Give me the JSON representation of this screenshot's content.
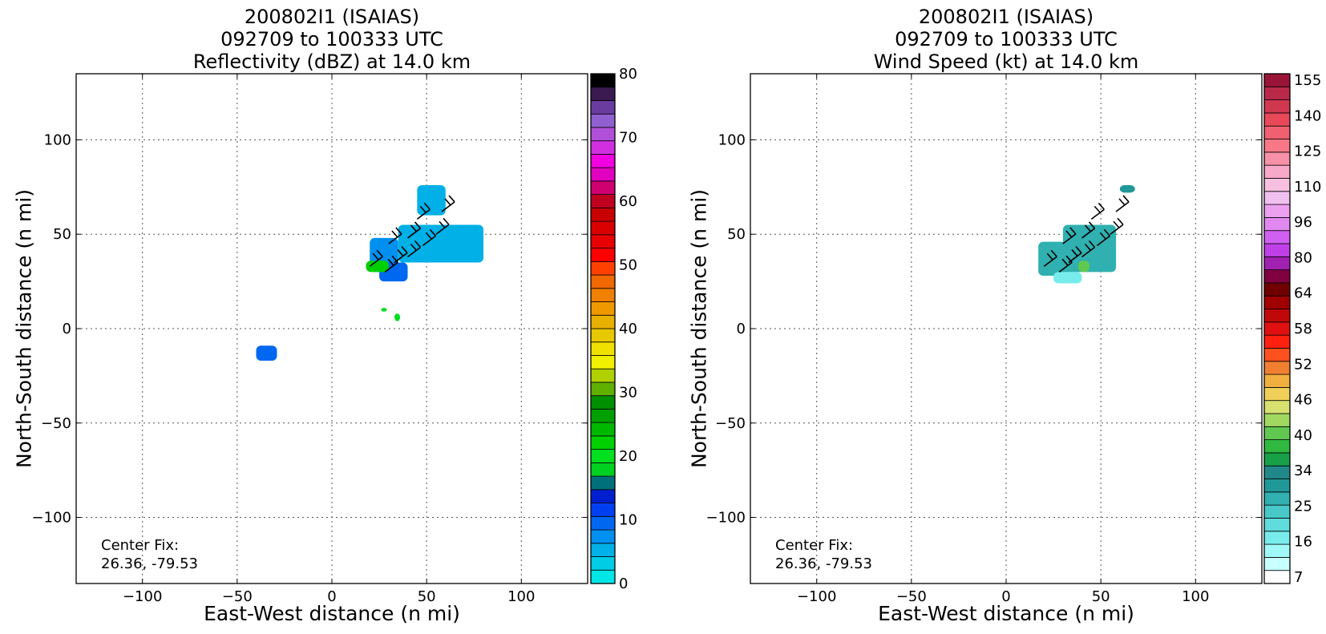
{
  "chart_data": [
    {
      "type": "heatmap",
      "title_lines": [
        "200802I1 (ISAIAS)",
        "092709 to 100333 UTC",
        "Reflectivity (dBZ) at 14.0 km"
      ],
      "xlabel": "East-West distance (n mi)",
      "ylabel": "North-South distance (n mi)",
      "xlim": [
        -135,
        135
      ],
      "ylim": [
        -135,
        135
      ],
      "xticks": [
        -100,
        -50,
        0,
        50,
        100
      ],
      "yticks": [
        -100,
        -50,
        0,
        50,
        100
      ],
      "xtick_labels": [
        "−100",
        "−50",
        "0",
        "50",
        "100"
      ],
      "ytick_labels": [
        "−100",
        "−50",
        "0",
        "50",
        "100"
      ],
      "grid": true,
      "center_fix_label": "Center Fix:",
      "center_fix_value": "26.36, -79.53",
      "colorbar": {
        "min": 0,
        "max": 80,
        "ticks": [
          "0",
          "10",
          "20",
          "30",
          "40",
          "50",
          "60",
          "70",
          "80"
        ],
        "colors": [
          "#00e6e6",
          "#00cce6",
          "#00b0e6",
          "#0090f0",
          "#0068f0",
          "#0040f0",
          "#0020d0",
          "#00707a",
          "#00d020",
          "#00e020",
          "#00d000",
          "#00b800",
          "#00a000",
          "#009000",
          "#60b000",
          "#b0d000",
          "#f0f000",
          "#f0e000",
          "#e8c800",
          "#e8b000",
          "#f09800",
          "#f08000",
          "#f06800",
          "#ff4000",
          "#ff0000",
          "#e80000",
          "#d80000",
          "#c80000",
          "#c00020",
          "#d00070",
          "#e000c0",
          "#f000e0",
          "#d030e0",
          "#b050d8",
          "#9060d0",
          "#6a3ca0",
          "#3a1a50",
          "#000000"
        ]
      },
      "echo_regions": [
        {
          "x": [
            20,
            35
          ],
          "y": [
            30,
            48
          ],
          "dbz": 8
        },
        {
          "x": [
            35,
            80
          ],
          "y": [
            35,
            55
          ],
          "dbz": 5
        },
        {
          "x": [
            45,
            60
          ],
          "y": [
            60,
            76
          ],
          "dbz": 6
        },
        {
          "x": [
            25,
            40
          ],
          "y": [
            25,
            35
          ],
          "dbz": 10
        },
        {
          "x": [
            18,
            30
          ],
          "y": [
            30,
            36
          ],
          "dbz": 22
        },
        {
          "x": [
            33,
            36
          ],
          "y": [
            4,
            8
          ],
          "dbz": 20
        },
        {
          "x": [
            26,
            29
          ],
          "y": [
            9,
            11
          ],
          "dbz": 20
        },
        {
          "x": [
            -40,
            -29
          ],
          "y": [
            -17,
            -9
          ],
          "dbz": 9
        }
      ],
      "wind_barbs": [
        {
          "x": 20,
          "y": 33
        },
        {
          "x": 28,
          "y": 30
        },
        {
          "x": 33,
          "y": 35
        },
        {
          "x": 40,
          "y": 38
        },
        {
          "x": 30,
          "y": 45
        },
        {
          "x": 40,
          "y": 48
        },
        {
          "x": 48,
          "y": 44
        },
        {
          "x": 55,
          "y": 50
        },
        {
          "x": 45,
          "y": 58
        },
        {
          "x": 58,
          "y": 62
        }
      ]
    },
    {
      "type": "heatmap",
      "title_lines": [
        "200802I1 (ISAIAS)",
        "092709 to 100333 UTC",
        "Wind Speed (kt) at 14.0 km"
      ],
      "xlabel": "East-West distance (n mi)",
      "ylabel": "North-South distance (n mi)",
      "xlim": [
        -135,
        135
      ],
      "ylim": [
        -135,
        135
      ],
      "xticks": [
        -100,
        -50,
        0,
        50,
        100
      ],
      "yticks": [
        -100,
        -50,
        0,
        50,
        100
      ],
      "xtick_labels": [
        "−100",
        "−50",
        "0",
        "50",
        "100"
      ],
      "ytick_labels": [
        "−100",
        "−50",
        "0",
        "50",
        "100"
      ],
      "grid": true,
      "center_fix_label": "Center Fix:",
      "center_fix_value": "26.36, -79.53",
      "colorbar": {
        "ticks": [
          "7",
          "16",
          "25",
          "34",
          "40",
          "46",
          "52",
          "58",
          "64",
          "80",
          "96",
          "110",
          "125",
          "140",
          "155"
        ],
        "colors": [
          "#ffffff",
          "#c8ffff",
          "#a0f8f8",
          "#78ecec",
          "#60dcdc",
          "#48c8c8",
          "#30b0b0",
          "#209898",
          "#208888",
          "#18a048",
          "#30b840",
          "#60c850",
          "#a0d860",
          "#d8e070",
          "#f0d058",
          "#f0b040",
          "#f08030",
          "#ff5020",
          "#ff2010",
          "#e01010",
          "#c00808",
          "#a00000",
          "#700000",
          "#800040",
          "#a020b0",
          "#c040e8",
          "#d060f0",
          "#e088f0",
          "#eca0f0",
          "#f0c0f0",
          "#f8c0e0",
          "#f8a8c8",
          "#f890a8",
          "#f87888",
          "#f06070",
          "#e84858",
          "#d03850",
          "#b82848",
          "#9a1438"
        ]
      },
      "echo_regions": [
        {
          "x": [
            17,
            32
          ],
          "y": [
            28,
            46
          ],
          "kt": 25
        },
        {
          "x": [
            30,
            58
          ],
          "y": [
            30,
            55
          ],
          "kt": 22
        },
        {
          "x": [
            25,
            40
          ],
          "y": [
            24,
            30
          ],
          "kt": 12
        },
        {
          "x": [
            60,
            68
          ],
          "y": [
            72,
            76
          ],
          "kt": 28
        },
        {
          "x": [
            38,
            44
          ],
          "y": [
            30,
            36
          ],
          "kt": 42
        }
      ],
      "wind_barbs": [
        {
          "x": 20,
          "y": 33
        },
        {
          "x": 28,
          "y": 30
        },
        {
          "x": 33,
          "y": 35
        },
        {
          "x": 40,
          "y": 38
        },
        {
          "x": 30,
          "y": 45
        },
        {
          "x": 40,
          "y": 48
        },
        {
          "x": 48,
          "y": 44
        },
        {
          "x": 55,
          "y": 50
        },
        {
          "x": 45,
          "y": 58
        },
        {
          "x": 58,
          "y": 62
        }
      ]
    }
  ]
}
